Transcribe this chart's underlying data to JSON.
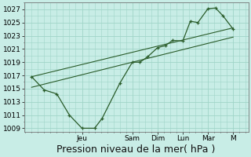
{
  "background_color": "#c8ede6",
  "plot_bg_color": "#c8ede6",
  "grid_color": "#a0d4c8",
  "line_color": "#2a5c2a",
  "ylim": [
    1008.5,
    1028
  ],
  "yticks": [
    1009,
    1011,
    1013,
    1015,
    1017,
    1019,
    1021,
    1023,
    1025,
    1027
  ],
  "xlabel": "Pression niveau de la mer( hPa )",
  "xlabel_fontsize": 9,
  "tick_fontsize": 6.5,
  "day_labels": [
    "Jeu",
    "Sam",
    "Dim",
    "Lun",
    "Mar",
    "M"
  ],
  "day_x": [
    2.0,
    4.0,
    5.0,
    6.0,
    7.0,
    8.0
  ],
  "xlim": [
    -0.3,
    8.6
  ],
  "line1_x": [
    0.0,
    0.5,
    1.0,
    1.5,
    2.0,
    2.5,
    2.8,
    3.5,
    4.0,
    4.3,
    4.6,
    5.0,
    5.3,
    5.6,
    6.0,
    6.3,
    6.6,
    7.0,
    7.3,
    7.6,
    8.0
  ],
  "line1_y": [
    1016.8,
    1014.8,
    1014.2,
    1011.0,
    1009.0,
    1009.0,
    1010.5,
    1015.8,
    1019.0,
    1019.0,
    1019.8,
    1021.2,
    1021.5,
    1022.3,
    1022.2,
    1025.2,
    1025.0,
    1027.1,
    1027.2,
    1026.0,
    1024.0
  ],
  "line2_x": [
    0.0,
    8.0
  ],
  "line2_y": [
    1015.2,
    1022.8
  ],
  "line3_x": [
    0.0,
    8.0
  ],
  "line3_y": [
    1016.8,
    1024.2
  ],
  "figsize": [
    3.2,
    2.0
  ],
  "dpi": 100
}
